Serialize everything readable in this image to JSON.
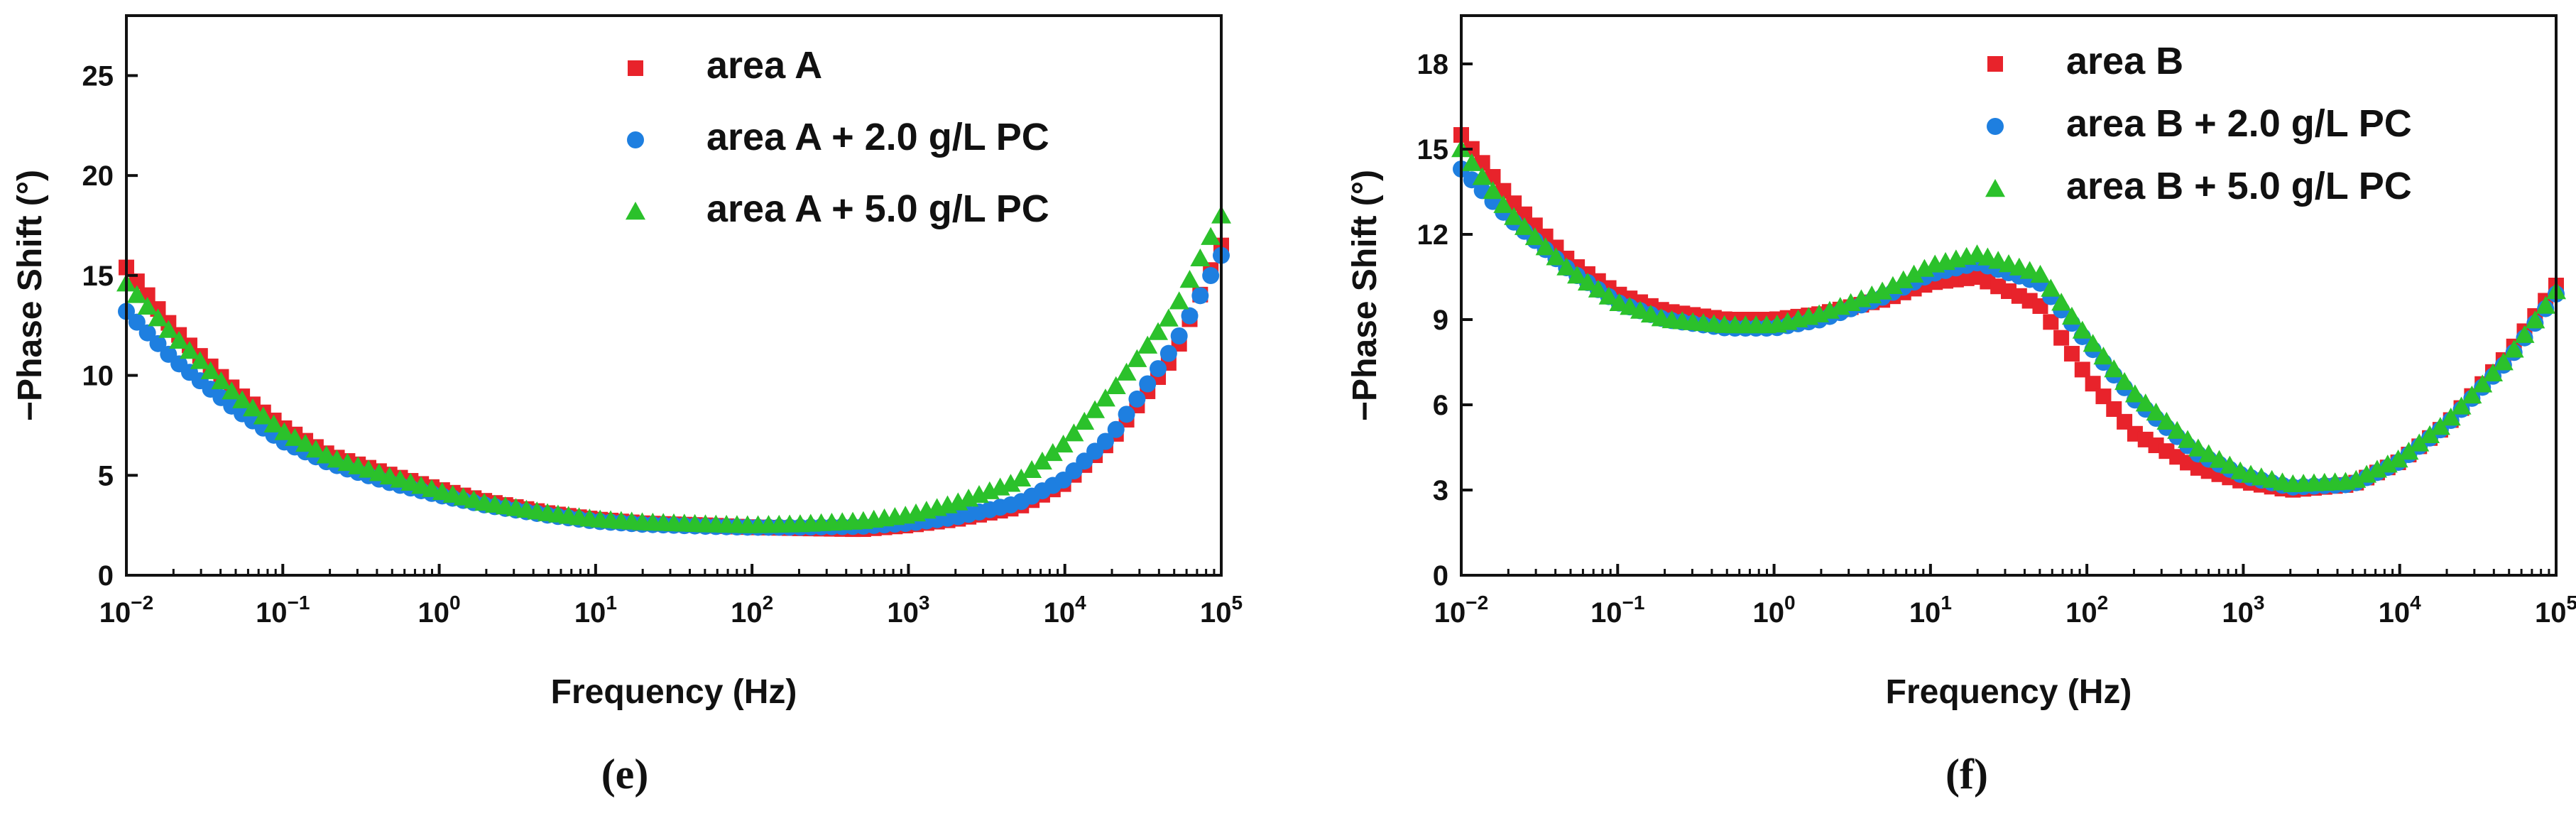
{
  "chart_data": [
    {
      "type": "scatter",
      "panel_label": "(e)",
      "xlabel": "Frequency (Hz)",
      "ylabel": "−Phase Shift (°)",
      "x_scale": "log",
      "xlim": [
        0.01,
        100000
      ],
      "ylim": [
        0,
        28
      ],
      "x_ticks": [
        {
          "value": 0.01,
          "base": "10",
          "exp": "−2"
        },
        {
          "value": 0.1,
          "base": "10",
          "exp": "−1"
        },
        {
          "value": 1,
          "base": "10",
          "exp": "0"
        },
        {
          "value": 10,
          "base": "10",
          "exp": "1"
        },
        {
          "value": 100,
          "base": "10",
          "exp": "2"
        },
        {
          "value": 1000,
          "base": "10",
          "exp": "3"
        },
        {
          "value": 10000,
          "base": "10",
          "exp": "4"
        },
        {
          "value": 100000,
          "base": "10",
          "exp": "5"
        }
      ],
      "y_ticks": [
        {
          "value": 0,
          "label": "0"
        },
        {
          "value": 5,
          "label": "5"
        },
        {
          "value": 10,
          "label": "10"
        },
        {
          "value": 15,
          "label": "15"
        },
        {
          "value": 20,
          "label": "20"
        },
        {
          "value": 25,
          "label": "25"
        }
      ],
      "legend_position": "top-right",
      "series": [
        {
          "name": "area A",
          "marker": "square",
          "color": "#e8232b",
          "points": [
            [
              0.01,
              15.4
            ],
            [
              0.02,
              12.3
            ],
            [
              0.05,
              9.2
            ],
            [
              0.1,
              7.4
            ],
            [
              0.2,
              6.0
            ],
            [
              0.5,
              5.0
            ],
            [
              1,
              4.3
            ],
            [
              2,
              3.7
            ],
            [
              5,
              3.1
            ],
            [
              10,
              2.8
            ],
            [
              20,
              2.6
            ],
            [
              50,
              2.5
            ],
            [
              100,
              2.4
            ],
            [
              200,
              2.35
            ],
            [
              500,
              2.3
            ],
            [
              1000,
              2.5
            ],
            [
              2000,
              2.8
            ],
            [
              5000,
              3.4
            ],
            [
              10000,
              4.6
            ],
            [
              20000,
              6.8
            ],
            [
              50000,
              11.0
            ],
            [
              100000,
              16.5
            ]
          ]
        },
        {
          "name": "area A + 2.0 g/L PC",
          "marker": "circle",
          "color": "#1e7fe0",
          "points": [
            [
              0.01,
              13.2
            ],
            [
              0.02,
              10.8
            ],
            [
              0.05,
              8.3
            ],
            [
              0.1,
              6.7
            ],
            [
              0.2,
              5.6
            ],
            [
              0.5,
              4.6
            ],
            [
              1,
              4.0
            ],
            [
              2,
              3.5
            ],
            [
              5,
              3.0
            ],
            [
              10,
              2.7
            ],
            [
              20,
              2.55
            ],
            [
              50,
              2.45
            ],
            [
              100,
              2.4
            ],
            [
              200,
              2.4
            ],
            [
              500,
              2.45
            ],
            [
              1000,
              2.6
            ],
            [
              2000,
              2.9
            ],
            [
              5000,
              3.6
            ],
            [
              10000,
              4.8
            ],
            [
              20000,
              7.0
            ],
            [
              50000,
              11.5
            ],
            [
              100000,
              16.0
            ]
          ]
        },
        {
          "name": "area A + 5.0 g/L PC",
          "marker": "triangle",
          "color": "#2bc12b",
          "points": [
            [
              0.01,
              14.6
            ],
            [
              0.02,
              12.0
            ],
            [
              0.05,
              9.0
            ],
            [
              0.1,
              7.2
            ],
            [
              0.2,
              5.9
            ],
            [
              0.5,
              4.9
            ],
            [
              1,
              4.2
            ],
            [
              2,
              3.6
            ],
            [
              5,
              3.1
            ],
            [
              10,
              2.8
            ],
            [
              20,
              2.65
            ],
            [
              50,
              2.55
            ],
            [
              100,
              2.5
            ],
            [
              200,
              2.55
            ],
            [
              500,
              2.7
            ],
            [
              1000,
              3.0
            ],
            [
              2000,
              3.6
            ],
            [
              5000,
              4.7
            ],
            [
              10000,
              6.6
            ],
            [
              20000,
              9.2
            ],
            [
              50000,
              13.2
            ],
            [
              100000,
              18.0
            ]
          ]
        }
      ]
    },
    {
      "type": "scatter",
      "panel_label": "(f)",
      "xlabel": "Frequency (Hz)",
      "ylabel": "−Phase Shift (°)",
      "x_scale": "log",
      "xlim": [
        0.01,
        100000
      ],
      "ylim": [
        0,
        19.7
      ],
      "x_ticks": [
        {
          "value": 0.01,
          "base": "10",
          "exp": "−2"
        },
        {
          "value": 0.1,
          "base": "10",
          "exp": "−1"
        },
        {
          "value": 1,
          "base": "10",
          "exp": "0"
        },
        {
          "value": 10,
          "base": "10",
          "exp": "1"
        },
        {
          "value": 100,
          "base": "10",
          "exp": "2"
        },
        {
          "value": 1000,
          "base": "10",
          "exp": "3"
        },
        {
          "value": 10000,
          "base": "10",
          "exp": "4"
        },
        {
          "value": 100000,
          "base": "10",
          "exp": "5"
        }
      ],
      "y_ticks": [
        {
          "value": 0,
          "label": "0"
        },
        {
          "value": 3,
          "label": "3"
        },
        {
          "value": 6,
          "label": "6"
        },
        {
          "value": 9,
          "label": "9"
        },
        {
          "value": 12,
          "label": "12"
        },
        {
          "value": 15,
          "label": "15"
        },
        {
          "value": 18,
          "label": "18"
        }
      ],
      "legend_position": "top-right",
      "series": [
        {
          "name": "area B",
          "marker": "square",
          "color": "#e8232b",
          "points": [
            [
              0.01,
              15.5
            ],
            [
              0.02,
              13.3
            ],
            [
              0.05,
              11.0
            ],
            [
              0.1,
              9.9
            ],
            [
              0.2,
              9.3
            ],
            [
              0.5,
              9.0
            ],
            [
              1,
              9.0
            ],
            [
              2,
              9.2
            ],
            [
              5,
              9.7
            ],
            [
              10,
              10.3
            ],
            [
              20,
              10.5
            ],
            [
              50,
              9.5
            ],
            [
              100,
              7.0
            ],
            [
              200,
              5.0
            ],
            [
              500,
              3.8
            ],
            [
              1000,
              3.3
            ],
            [
              2000,
              3.0
            ],
            [
              5000,
              3.2
            ],
            [
              10000,
              4.0
            ],
            [
              20000,
              5.3
            ],
            [
              50000,
              7.8
            ],
            [
              100000,
              10.2
            ]
          ]
        },
        {
          "name": "area B + 2.0 g/L PC",
          "marker": "circle",
          "color": "#1e7fe0",
          "points": [
            [
              0.01,
              14.3
            ],
            [
              0.02,
              12.6
            ],
            [
              0.05,
              10.7
            ],
            [
              0.1,
              9.6
            ],
            [
              0.2,
              9.0
            ],
            [
              0.5,
              8.7
            ],
            [
              1,
              8.7
            ],
            [
              2,
              9.0
            ],
            [
              5,
              9.8
            ],
            [
              10,
              10.6
            ],
            [
              20,
              11.0
            ],
            [
              50,
              10.3
            ],
            [
              100,
              8.2
            ],
            [
              200,
              6.2
            ],
            [
              500,
              4.3
            ],
            [
              1000,
              3.5
            ],
            [
              2000,
              3.1
            ],
            [
              5000,
              3.2
            ],
            [
              10000,
              4.0
            ],
            [
              20000,
              5.3
            ],
            [
              50000,
              7.6
            ],
            [
              100000,
              9.9
            ]
          ]
        },
        {
          "name": "area B + 5.0 g/L PC",
          "marker": "triangle",
          "color": "#2bc12b",
          "points": [
            [
              0.01,
              15.0
            ],
            [
              0.02,
              12.8
            ],
            [
              0.05,
              10.7
            ],
            [
              0.1,
              9.6
            ],
            [
              0.2,
              9.0
            ],
            [
              0.5,
              8.8
            ],
            [
              1,
              8.8
            ],
            [
              2,
              9.2
            ],
            [
              5,
              10.0
            ],
            [
              10,
              10.9
            ],
            [
              20,
              11.3
            ],
            [
              50,
              10.6
            ],
            [
              100,
              8.4
            ],
            [
              200,
              6.4
            ],
            [
              500,
              4.5
            ],
            [
              1000,
              3.6
            ],
            [
              2000,
              3.2
            ],
            [
              5000,
              3.3
            ],
            [
              10000,
              4.1
            ],
            [
              20000,
              5.4
            ],
            [
              50000,
              7.7
            ],
            [
              100000,
              10.0
            ]
          ]
        }
      ]
    }
  ]
}
